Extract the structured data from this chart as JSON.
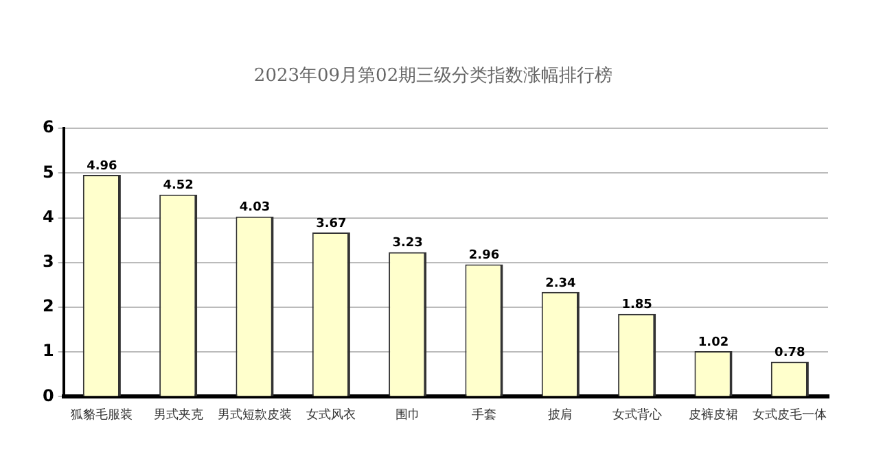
{
  "chart_data": {
    "type": "bar",
    "title": "2023年09月第02期三级分类指数涨幅排行榜",
    "categories": [
      "狐貉毛服装",
      "男式夹克",
      "男式短款皮装",
      "女式风衣",
      "围巾",
      "手套",
      "披肩",
      "女式背心",
      "皮裤皮裙",
      "女式皮毛一体"
    ],
    "values": [
      4.96,
      4.52,
      4.03,
      3.67,
      3.23,
      2.96,
      2.34,
      1.85,
      1.02,
      0.78
    ],
    "color": "#ffffcc",
    "ylim": [
      0,
      6
    ],
    "yticks": [
      0,
      1,
      2,
      3,
      4,
      5,
      6
    ],
    "grid": "y",
    "data_labels": true
  }
}
